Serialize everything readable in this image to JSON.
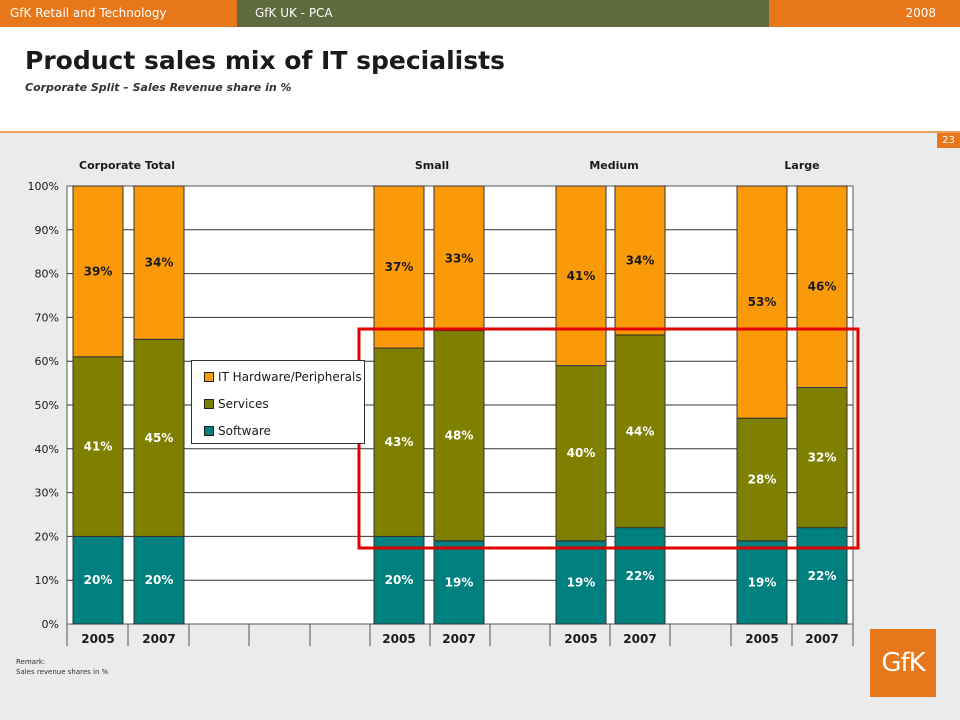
{
  "header": {
    "left": "GfK Retail and Technology",
    "middle": "GfK UK - PCA",
    "right": "2008"
  },
  "title": "Product sales mix of IT specialists",
  "subtitle": "Corporate Split – Sales Revenue share in %",
  "page_number": "23",
  "remark": {
    "label": "Remark:",
    "text": "Sales revenue shares in %"
  },
  "logo_text": "GfK",
  "colors": {
    "hardware": "#fb9a08",
    "services": "#808000",
    "software": "#00807f",
    "accent": "#e8761a",
    "highlight_box": "#e00000"
  },
  "chart_data": {
    "type": "bar",
    "stacked": true,
    "groups": [
      "Corporate Total",
      "Small",
      "Medium",
      "Large"
    ],
    "x": [
      {
        "group": "Corporate Total",
        "year": "2005"
      },
      {
        "group": "Corporate Total",
        "year": "2007"
      },
      {
        "group": "Small",
        "year": "2005"
      },
      {
        "group": "Small",
        "year": "2007"
      },
      {
        "group": "Medium",
        "year": "2005"
      },
      {
        "group": "Medium",
        "year": "2007"
      },
      {
        "group": "Large",
        "year": "2005"
      },
      {
        "group": "Large",
        "year": "2007"
      }
    ],
    "categories": [
      "2005",
      "2007",
      "2005",
      "2007",
      "2005",
      "2007",
      "2005",
      "2007"
    ],
    "series": [
      {
        "name": "Software",
        "values": [
          20,
          20,
          20,
          19,
          19,
          22,
          19,
          22
        ],
        "labels": [
          "20%",
          "20%",
          "20%",
          "19%",
          "19%",
          "22%",
          "19%",
          "22%"
        ]
      },
      {
        "name": "Services",
        "values": [
          41,
          45,
          43,
          48,
          40,
          44,
          28,
          32
        ],
        "labels": [
          "41%",
          "45%",
          "43%",
          "48%",
          "40%",
          "44%",
          "28%",
          "32%"
        ]
      },
      {
        "name": "IT Hardware/Peripherals",
        "values": [
          39,
          34,
          37,
          33,
          41,
          34,
          53,
          46
        ],
        "labels": [
          "39%",
          "34%",
          "37%",
          "33%",
          "41%",
          "34%",
          "53%",
          "46%"
        ]
      }
    ],
    "legend_order": [
      "IT Hardware/Peripherals",
      "Services",
      "Software"
    ],
    "ylim": [
      0,
      100
    ],
    "yticks": [
      "0%",
      "10%",
      "20%",
      "30%",
      "40%",
      "50%",
      "60%",
      "70%",
      "80%",
      "90%",
      "100%"
    ],
    "grid": true,
    "legend_position": "left-center"
  }
}
